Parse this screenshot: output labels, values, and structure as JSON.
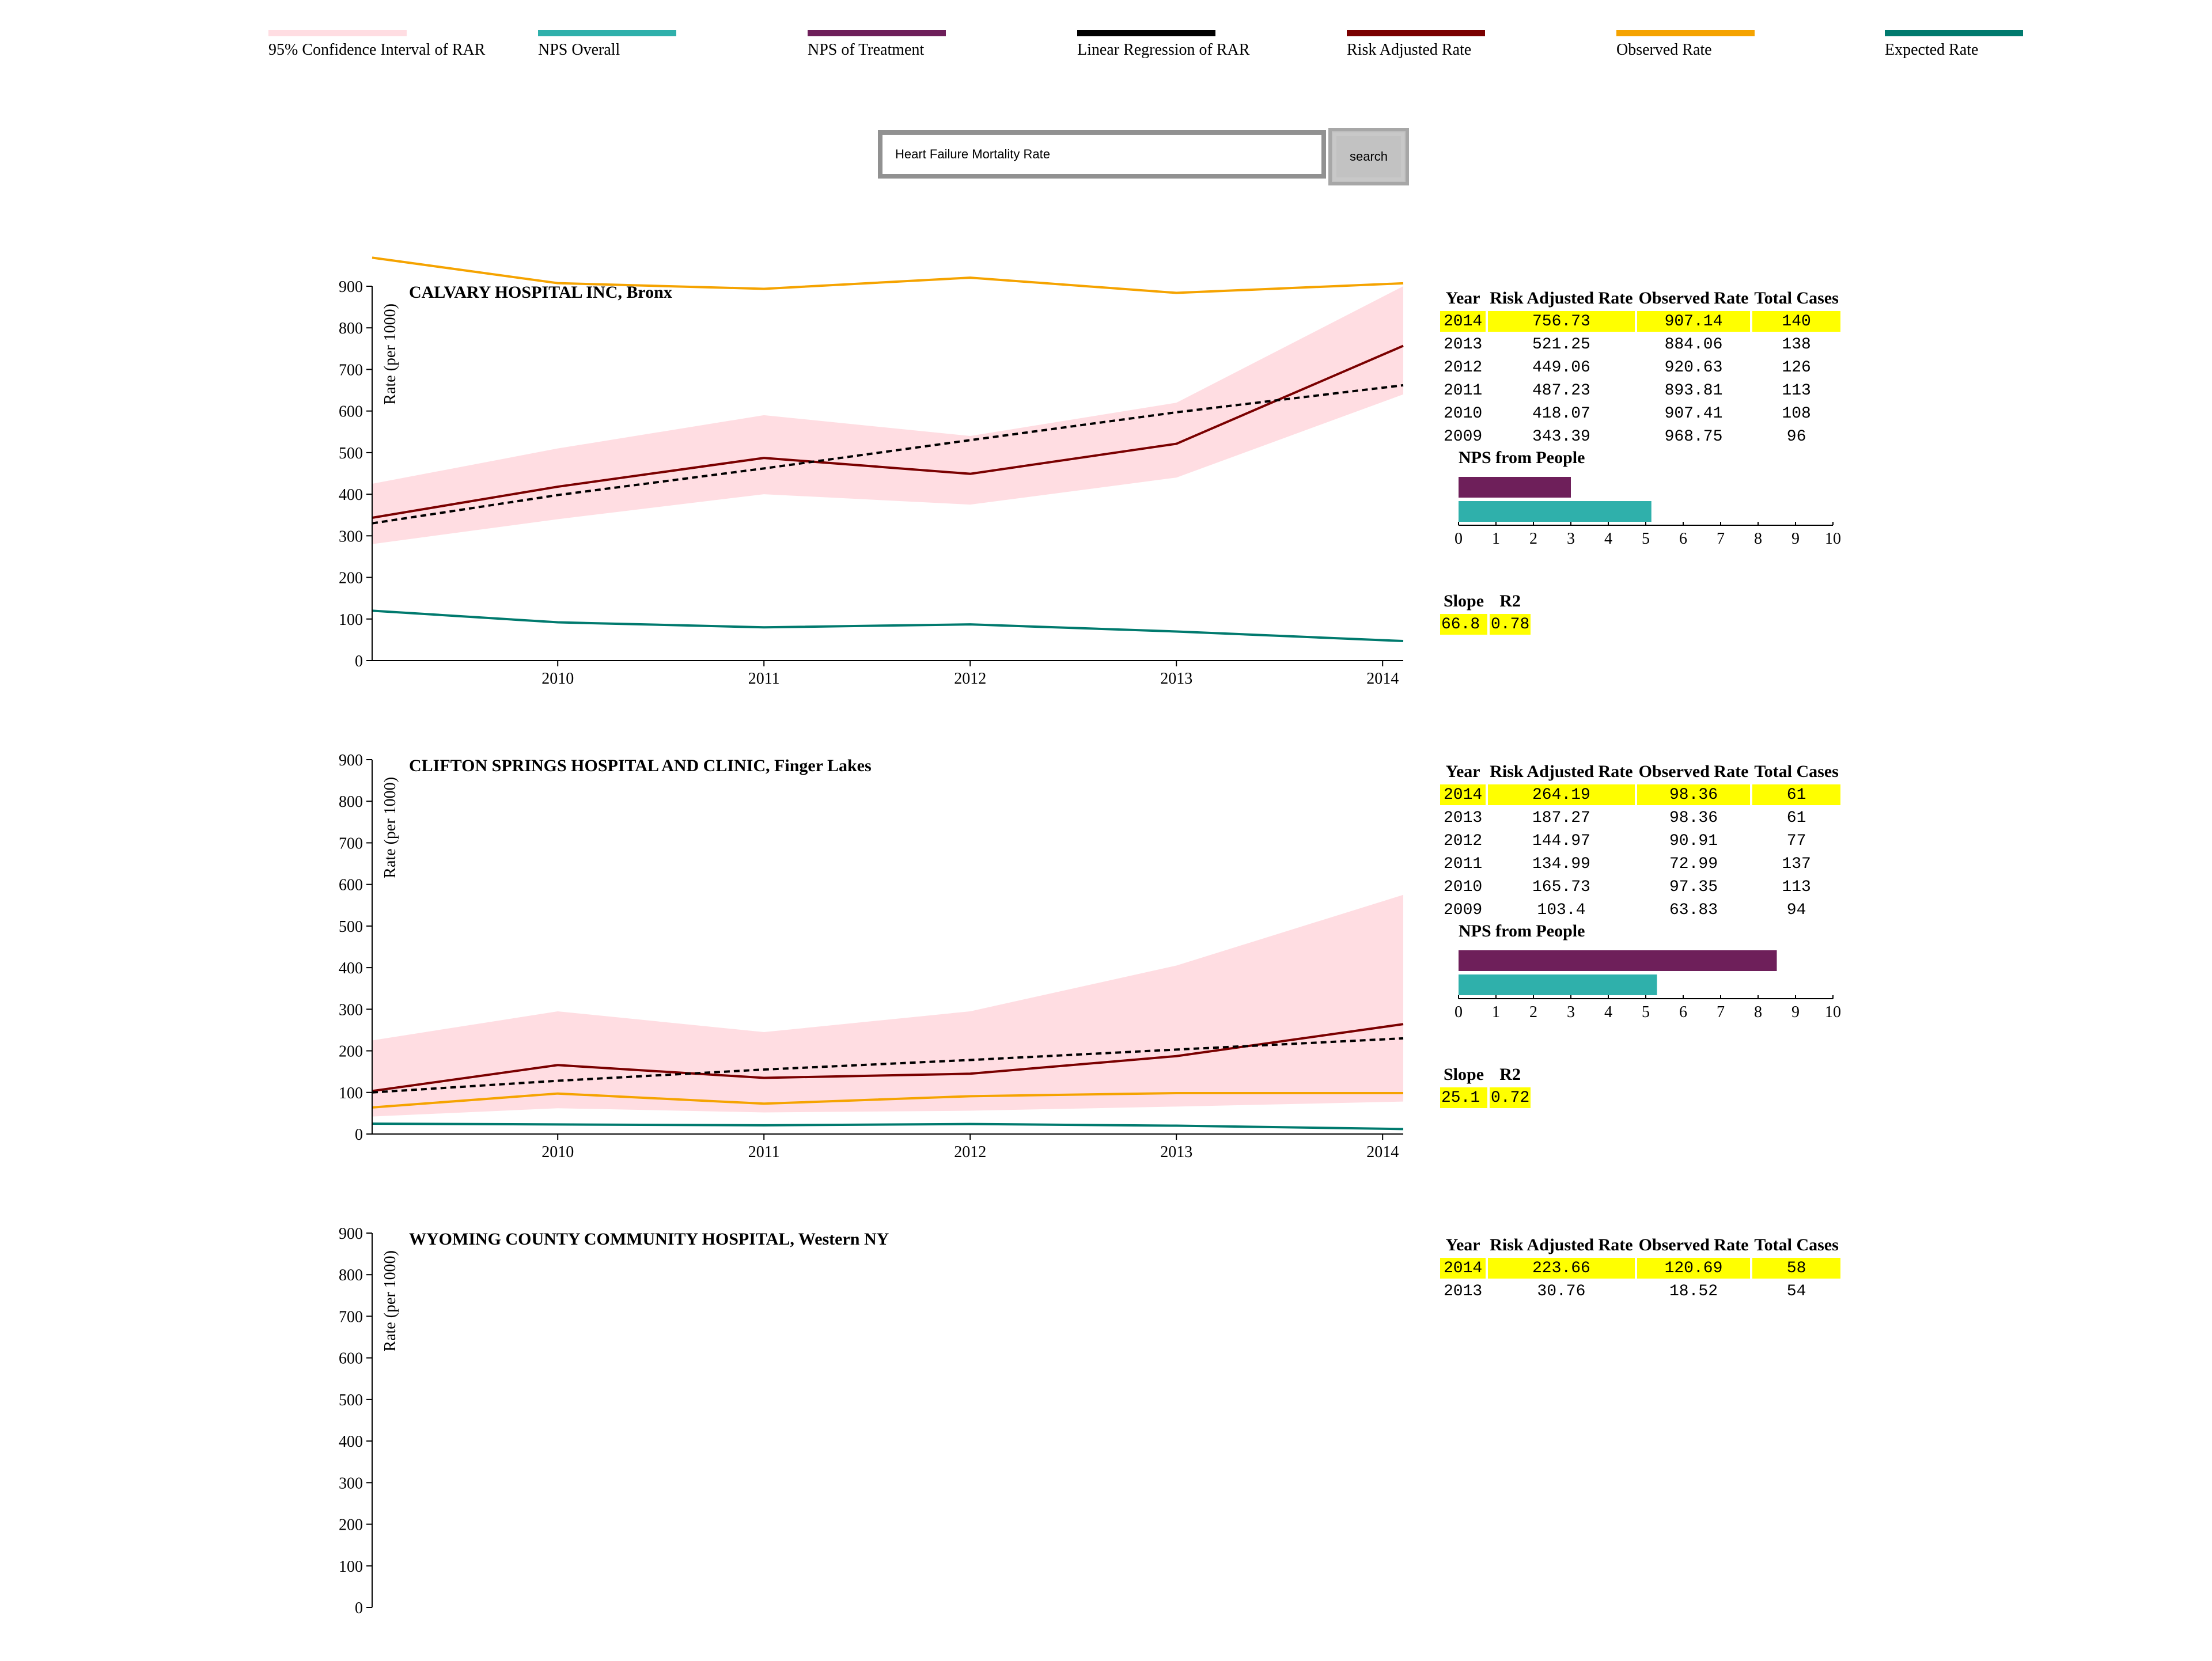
{
  "legend": [
    {
      "label": "95% Confidence Interval of RAR",
      "color": "#ffdde2"
    },
    {
      "label": "NPS Overall",
      "color": "#2fb0ab"
    },
    {
      "label": "NPS of Treatment",
      "color": "#6e1f5a"
    },
    {
      "label": "Linear Regression of RAR",
      "color": "#000000"
    },
    {
      "label": "Risk Adjusted Rate",
      "color": "#7a0000"
    },
    {
      "label": "Observed Rate",
      "color": "#f5a300"
    },
    {
      "label": "Expected Rate",
      "color": "#007a6e"
    }
  ],
  "search": {
    "value": "Heart Failure Mortality Rate",
    "button_label": "search"
  },
  "table_headers": [
    "Year",
    "Risk Adjusted Rate",
    "Observed Rate",
    "Total Cases"
  ],
  "nps_title": "NPS from People",
  "slope_headers": [
    "Slope",
    "R2"
  ],
  "hospitals": [
    {
      "title": "CALVARY HOSPITAL INC, Bronx",
      "rows": [
        [
          "2014",
          "756.73",
          "907.14",
          "140"
        ],
        [
          "2013",
          "521.25",
          "884.06",
          "138"
        ],
        [
          "2012",
          "449.06",
          "920.63",
          "126"
        ],
        [
          "2011",
          "487.23",
          "893.81",
          "113"
        ],
        [
          "2010",
          "418.07",
          "907.41",
          "108"
        ],
        [
          "2009",
          "343.39",
          "968.75",
          "96"
        ]
      ],
      "nps": {
        "treatment": 3.0,
        "overall": 5.15
      },
      "slope": "66.8",
      "r2": "0.78"
    },
    {
      "title": "CLIFTON SPRINGS HOSPITAL AND CLINIC, Finger Lakes",
      "rows": [
        [
          "2014",
          "264.19",
          "98.36",
          "61"
        ],
        [
          "2013",
          "187.27",
          "98.36",
          "61"
        ],
        [
          "2012",
          "144.97",
          "90.91",
          "77"
        ],
        [
          "2011",
          "134.99",
          "72.99",
          "137"
        ],
        [
          "2010",
          "165.73",
          "97.35",
          "113"
        ],
        [
          "2009",
          "103.4",
          "63.83",
          "94"
        ]
      ],
      "nps": {
        "treatment": 8.5,
        "overall": 5.3
      },
      "slope": "25.1",
      "r2": "0.72"
    },
    {
      "title": "WYOMING COUNTY COMMUNITY HOSPITAL, Western NY",
      "rows": [
        [
          "2014",
          "223.66",
          "120.69",
          "58"
        ],
        [
          "2013",
          "30.76",
          "18.52",
          "54"
        ]
      ]
    }
  ],
  "chart_data": [
    {
      "type": "line",
      "title": "CALVARY HOSPITAL INC, Bronx",
      "ylabel": "Rate (per 1000)",
      "x": [
        2009.1,
        2010,
        2011,
        2012,
        2013,
        2014.1
      ],
      "xticks": [
        2010,
        2011,
        2012,
        2013,
        2014
      ],
      "ylim": [
        0,
        900
      ],
      "yticks": [
        0,
        100,
        200,
        300,
        400,
        500,
        600,
        700,
        800,
        900
      ],
      "ci_upper": [
        425,
        510,
        590,
        540,
        620,
        900
      ],
      "ci_lower": [
        280,
        340,
        400,
        375,
        440,
        640
      ],
      "series": [
        {
          "name": "Risk Adjusted Rate",
          "values": [
            343.39,
            418.07,
            487.23,
            449.06,
            521.25,
            756.73
          ]
        },
        {
          "name": "Observed Rate",
          "values": [
            968.75,
            907.41,
            893.81,
            920.63,
            884.06,
            907.14
          ]
        },
        {
          "name": "Expected Rate",
          "values": [
            120,
            92,
            80,
            87,
            70,
            47
          ]
        },
        {
          "name": "Linear Regression of RAR",
          "values": [
            330,
            398,
            462,
            530,
            597,
            662
          ]
        }
      ]
    },
    {
      "type": "line",
      "title": "CLIFTON SPRINGS HOSPITAL AND CLINIC, Finger Lakes",
      "ylabel": "Rate (per 1000)",
      "x": [
        2009.1,
        2010,
        2011,
        2012,
        2013,
        2014.1
      ],
      "xticks": [
        2010,
        2011,
        2012,
        2013,
        2014
      ],
      "ylim": [
        0,
        900
      ],
      "yticks": [
        0,
        100,
        200,
        300,
        400,
        500,
        600,
        700,
        800,
        900
      ],
      "ci_upper": [
        225,
        295,
        245,
        295,
        405,
        575
      ],
      "ci_lower": [
        42,
        62,
        52,
        56,
        66,
        78
      ],
      "series": [
        {
          "name": "Risk Adjusted Rate",
          "values": [
            103.4,
            165.73,
            134.99,
            144.97,
            187.27,
            264.19
          ]
        },
        {
          "name": "Observed Rate",
          "values": [
            63.83,
            97.35,
            72.99,
            90.91,
            98.36,
            98.36
          ]
        },
        {
          "name": "Expected Rate",
          "values": [
            25,
            23,
            21,
            24,
            20,
            12
          ]
        },
        {
          "name": "Linear Regression of RAR",
          "values": [
            100,
            128,
            155,
            178,
            203,
            230
          ]
        }
      ]
    },
    {
      "type": "line",
      "title": "WYOMING COUNTY COMMUNITY HOSPITAL, Western NY",
      "ylabel": "Rate (per 1000)",
      "ylim": [
        0,
        900
      ],
      "yticks": [
        0,
        100,
        200,
        300,
        400,
        500,
        600,
        700,
        800,
        900
      ]
    }
  ]
}
